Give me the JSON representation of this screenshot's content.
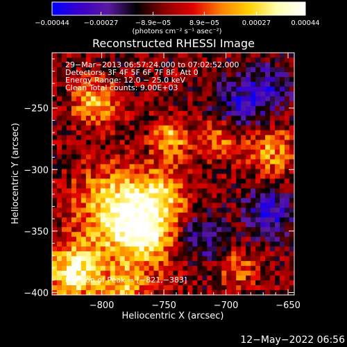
{
  "chart_data": {
    "type": "heatmap",
    "title": "Reconstructed RHESSI Image",
    "xlabel": "Heliocentric X (arcsec)",
    "ylabel": "Heliocentric Y (arcsec)",
    "xlim": [
      -840,
      -645
    ],
    "ylim": [
      -402,
      -205
    ],
    "x_ticks": [
      {
        "value": -800,
        "label": "−800"
      },
      {
        "value": -750,
        "label": "−750"
      },
      {
        "value": -700,
        "label": "−700"
      },
      {
        "value": -650,
        "label": "−650"
      }
    ],
    "y_ticks": [
      {
        "value": -250,
        "label": "−250"
      },
      {
        "value": -300,
        "label": "−300"
      },
      {
        "value": -350,
        "label": "−350"
      },
      {
        "value": -400,
        "label": "−400"
      }
    ],
    "colorbar": {
      "min": -0.00044,
      "max": 0.00044,
      "tick_values": [
        -0.00044,
        -0.00027,
        -8.9e-05,
        8.9e-05,
        0.00027,
        0.00044
      ],
      "tick_labels": [
        "−0.00044",
        "−0.00027",
        "−8.9e−05",
        "8.9e−05",
        "0.00027",
        "0.00044"
      ],
      "unit": "(photons cm⁻² s⁻¹ asec⁻²)",
      "colors": [
        "#0000ff",
        "#3a00c8",
        "#5a1aa0",
        "#000000",
        "#8c0000",
        "#e00000",
        "#ff8000",
        "#ffd000",
        "#ffffb0",
        "#ffffff"
      ]
    },
    "annotations": [
      "29−Mar−2013 06:57:24.000 to 07:02:52.000",
      "Detectors: 3F 4F 5F 6F 7F 8F, Att 0",
      "Energy Range: 12.0 − 25.0 keV",
      "Clean     Total counts: 9.00E+03"
    ],
    "peak_label": "Position of Peak = [−821,−383]",
    "peak": [
      -821,
      -383
    ],
    "sources": [
      {
        "x": -821,
        "y": -383,
        "amp": 1.0,
        "sigma": 16
      },
      {
        "x": -765,
        "y": -350,
        "amp": 0.95,
        "sigma": 20
      },
      {
        "x": -790,
        "y": -330,
        "amp": 0.75,
        "sigma": 22
      },
      {
        "x": -745,
        "y": -275,
        "amp": 0.7,
        "sigma": 10
      },
      {
        "x": -805,
        "y": -245,
        "amp": 0.65,
        "sigma": 13
      },
      {
        "x": -665,
        "y": -285,
        "amp": 0.6,
        "sigma": 14
      },
      {
        "x": -705,
        "y": -272,
        "amp": 0.55,
        "sigma": 12
      },
      {
        "x": -752,
        "y": -318,
        "amp": 0.55,
        "sigma": 14
      },
      {
        "x": -780,
        "y": -395,
        "amp": 0.6,
        "sigma": 12
      },
      {
        "x": -690,
        "y": -380,
        "amp": 0.45,
        "sigma": 10
      },
      {
        "x": -665,
        "y": -335,
        "amp": -0.65,
        "sigma": 14
      },
      {
        "x": -690,
        "y": -250,
        "amp": -0.55,
        "sigma": 16
      },
      {
        "x": -722,
        "y": -355,
        "amp": -0.5,
        "sigma": 14
      },
      {
        "x": -665,
        "y": -232,
        "amp": -0.45,
        "sigma": 14
      }
    ]
  },
  "footer": {
    "timestamp": "12−May−2022 06:56"
  }
}
